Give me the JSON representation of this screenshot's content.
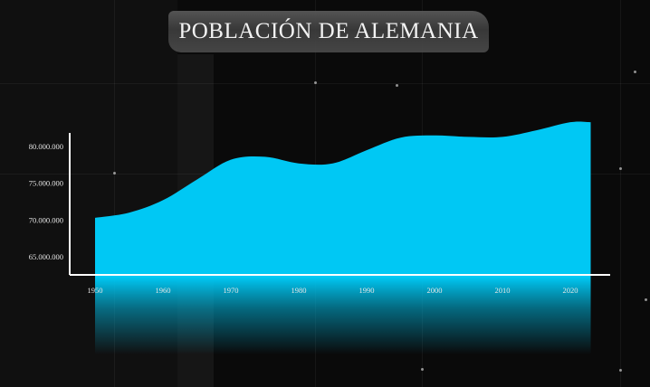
{
  "title": "POBLACIÓN DE ALEMANIA",
  "colors": {
    "background": "#0a0a0a",
    "area_fill_top": "#00c8f4",
    "area_fill_fade": "#00b4dc",
    "axis": "#ffffff",
    "text": "#e6e6e6",
    "title_banner": "#4a4a4a"
  },
  "chart_data": {
    "type": "area",
    "title": "POBLACIÓN DE ALEMANIA",
    "xlabel": "",
    "ylabel": "",
    "x": [
      1950,
      1955,
      1960,
      1965,
      1970,
      1975,
      1980,
      1985,
      1990,
      1995,
      2000,
      2005,
      2010,
      2015,
      2020,
      2023
    ],
    "series": [
      {
        "values": [
          70300000,
          71000000,
          72700000,
          75500000,
          78200000,
          78600000,
          77700000,
          77700000,
          79500000,
          81200000,
          81500000,
          81300000,
          81300000,
          82200000,
          83300000,
          83300000
        ]
      }
    ],
    "x_ticks": [
      "1950",
      "1960",
      "1970",
      "1980",
      "1990",
      "2000",
      "2010",
      "2020"
    ],
    "y_ticks": [
      "65.000.000",
      "70.000.000",
      "75.000.000",
      "80.000.000"
    ],
    "y_tick_values": [
      65000000,
      70000000,
      75000000,
      80000000
    ],
    "xlim": [
      1948,
      2025
    ],
    "ylim": [
      61500000,
      84500000
    ],
    "grid": false,
    "legend": "none"
  }
}
